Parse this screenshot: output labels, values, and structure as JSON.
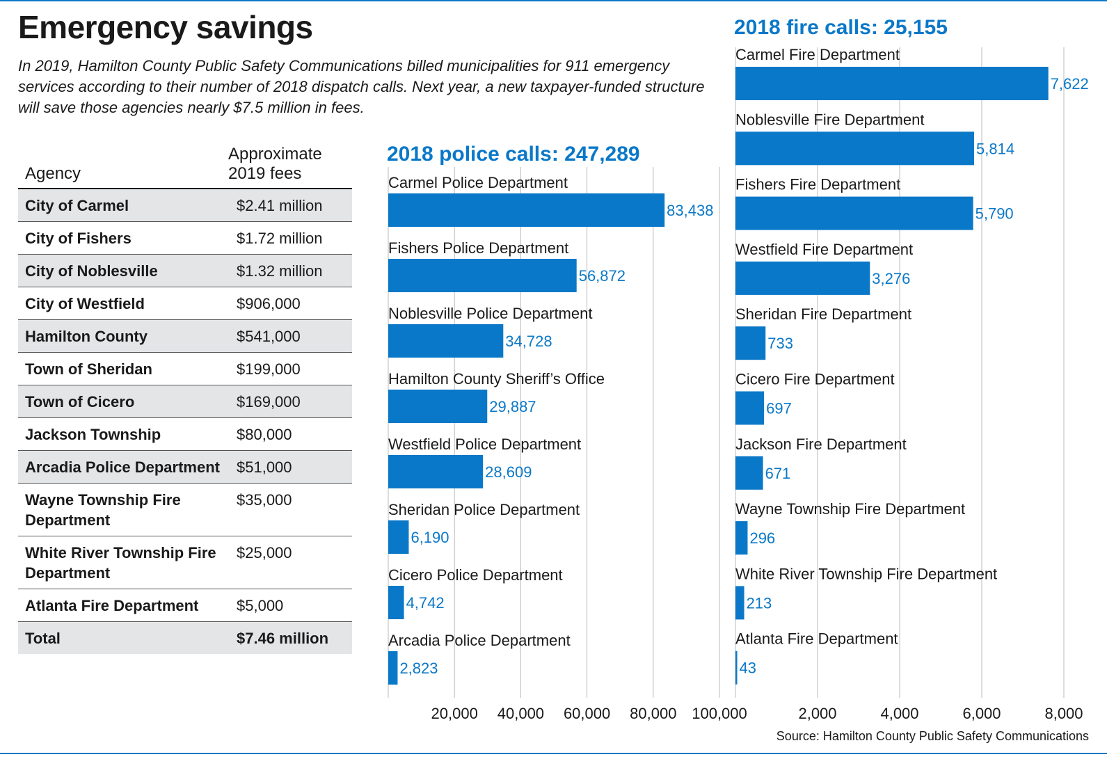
{
  "title": "Emergency savings",
  "intro": "In 2019, Hamilton County Public Safety Communications billed municipalities for 911 emergency services according to their number of 2018 dispatch calls. Next year, a new taxpayer-funded structure will save those agencies nearly $7.5 million in fees.",
  "colors": {
    "bar": "#0a78c8",
    "rule": "#0a78c8",
    "text": "#1a1a1a",
    "grid": "#bbbbbb",
    "shade": "#e4e5e7"
  },
  "table": {
    "headers": {
      "agency": "Agency",
      "fee": "Approximate 2019 fees"
    },
    "rows": [
      {
        "agency": "City of Carmel",
        "fee": "$2.41 million",
        "shaded": true
      },
      {
        "agency": "City of Fishers",
        "fee": "$1.72 million",
        "shaded": false
      },
      {
        "agency": "City of Noblesville",
        "fee": "$1.32 million",
        "shaded": true
      },
      {
        "agency": "City of Westfield",
        "fee": "$906,000",
        "shaded": false
      },
      {
        "agency": "Hamilton County",
        "fee": "$541,000",
        "shaded": true
      },
      {
        "agency": "Town of Sheridan",
        "fee": "$199,000",
        "shaded": false
      },
      {
        "agency": "Town of Cicero",
        "fee": "$169,000",
        "shaded": true
      },
      {
        "agency": "Jackson Township",
        "fee": "$80,000",
        "shaded": false
      },
      {
        "agency": "Arcadia Police Department",
        "fee": "$51,000",
        "shaded": true
      },
      {
        "agency": "Wayne Township Fire Department",
        "fee": "$35,000",
        "shaded": false
      },
      {
        "agency": "White River Township Fire Department",
        "fee": "$25,000",
        "shaded": false
      },
      {
        "agency": "Atlanta Fire Department",
        "fee": "$5,000",
        "shaded": false
      }
    ],
    "total": {
      "agency": "Total",
      "fee": "$7.46 million",
      "shaded": true
    }
  },
  "chart_data": [
    {
      "type": "bar",
      "orientation": "horizontal",
      "title": "2018 police calls: 247,289",
      "categories": [
        "Carmel Police Department",
        "Fishers Police Department",
        "Noblesville Police Department",
        "Hamilton County Sheriff’s Office",
        "Westfield Police Department",
        "Sheridan Police Department",
        "Cicero Police Department",
        "Arcadia Police Department"
      ],
      "values": [
        83438,
        56872,
        34728,
        29887,
        28609,
        6190,
        4742,
        2823
      ],
      "value_labels": [
        "83,438",
        "56,872",
        "34,728",
        "29,887",
        "28,609",
        "6,190",
        "4,742",
        "2,823"
      ],
      "xlim": [
        0,
        100000
      ],
      "ticks": [
        20000,
        40000,
        60000,
        80000,
        100000
      ],
      "tick_labels": [
        "20,000",
        "40,000",
        "60,000",
        "80,000",
        "100,000"
      ],
      "grid": true
    },
    {
      "type": "bar",
      "orientation": "horizontal",
      "title": "2018 fire calls: 25,155",
      "categories": [
        "Carmel Fire Department",
        "Noblesville Fire Department",
        "Fishers Fire Department",
        "Westfield Fire Department",
        "Sheridan Fire Department",
        "Cicero Fire Department",
        "Jackson Fire Department",
        "Wayne Township Fire Department",
        "White River Township Fire Department",
        "Atlanta Fire Department"
      ],
      "values": [
        7622,
        5814,
        5790,
        3276,
        733,
        697,
        671,
        296,
        213,
        43
      ],
      "value_labels": [
        "7,622",
        "5,814",
        "5,790",
        "3,276",
        "733",
        "697",
        "671",
        "296",
        "213",
        "43"
      ],
      "xlim": [
        0,
        8000
      ],
      "ticks": [
        2000,
        4000,
        6000,
        8000
      ],
      "tick_labels": [
        "2,000",
        "4,000",
        "6,000",
        "8,000"
      ],
      "grid": true
    }
  ],
  "source": "Source: Hamilton County Public Safety Communications"
}
